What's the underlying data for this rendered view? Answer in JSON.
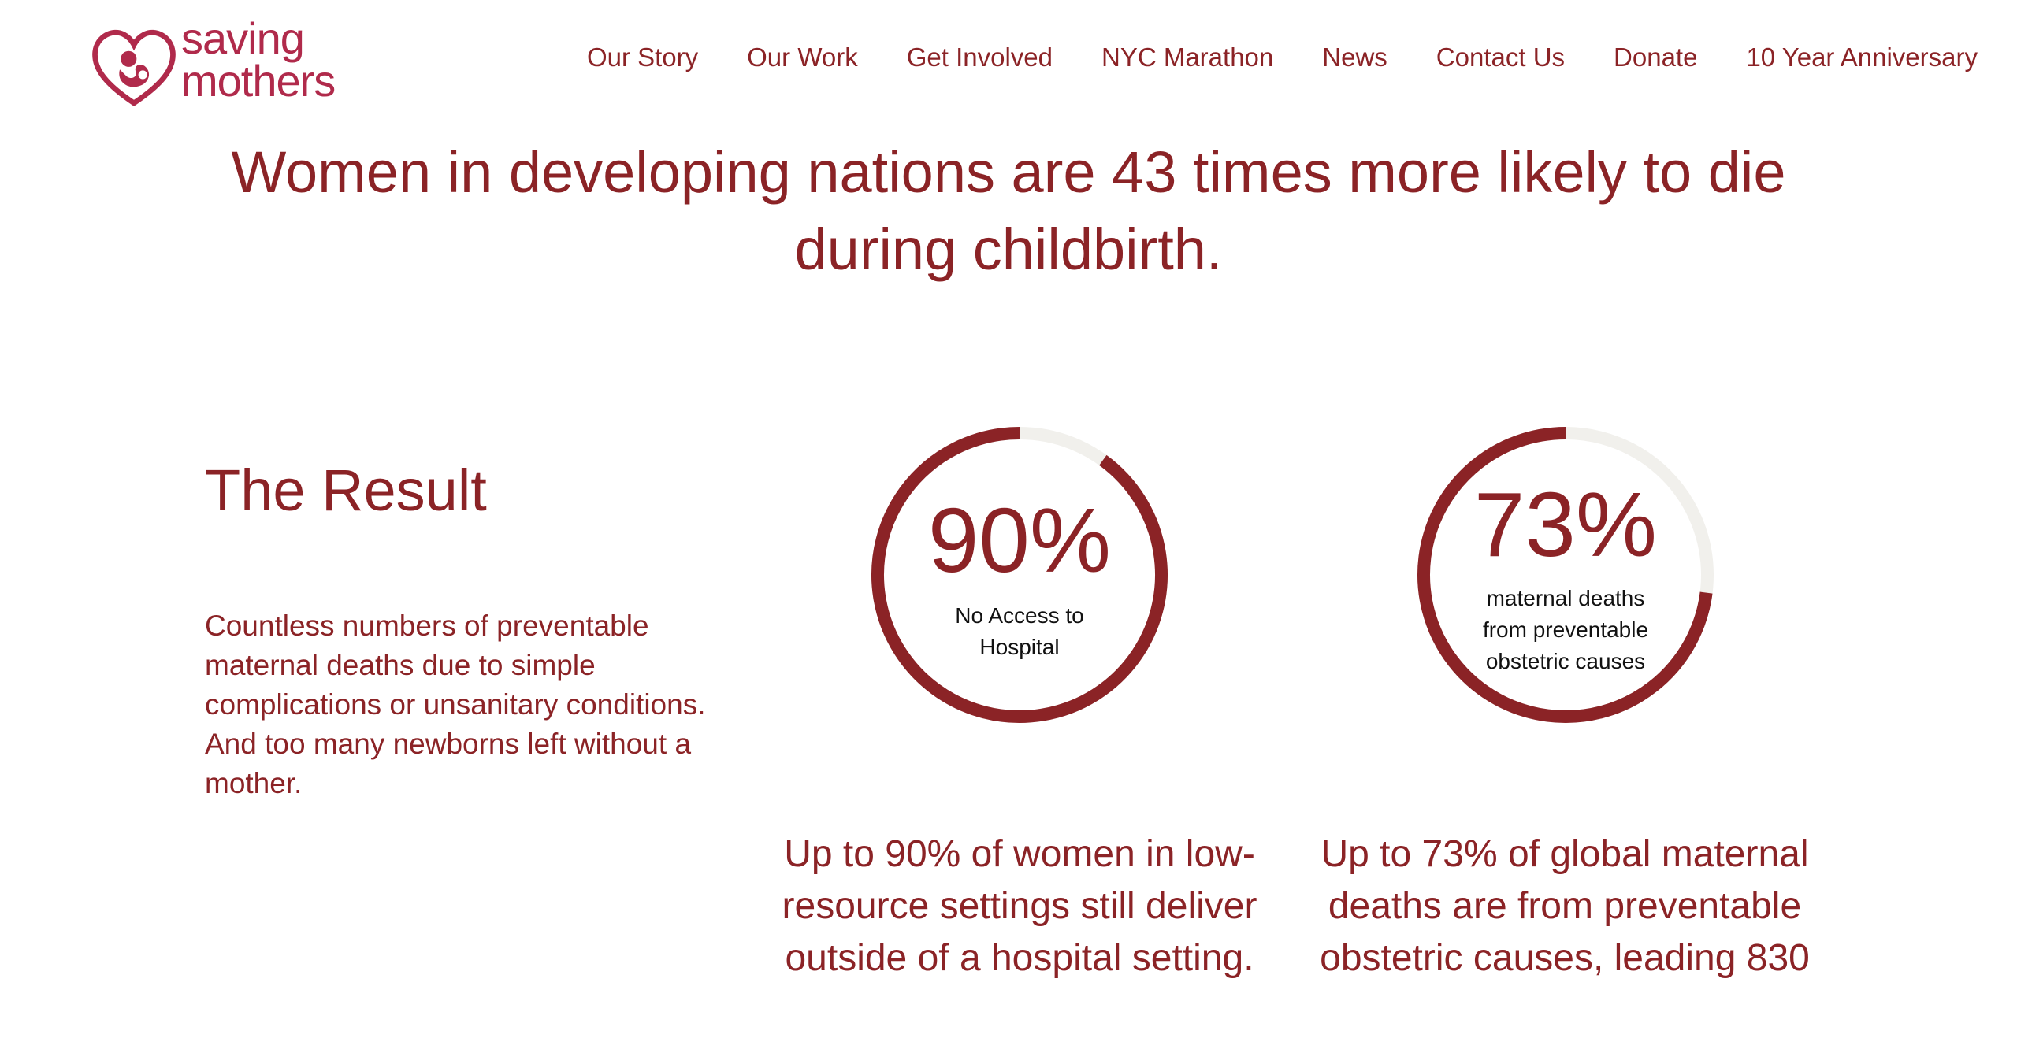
{
  "header": {
    "logo": {
      "line1": "saving",
      "line2": "mothers",
      "icon": "heart-mother-child-icon"
    },
    "nav": [
      "Our Story",
      "Our Work",
      "Get Involved",
      "NYC Marathon",
      "News",
      "Contact Us",
      "Donate",
      "10 Year Anniversary"
    ]
  },
  "headline": "Women in developing nations are 43 times more likely to die during childbirth.",
  "result": {
    "title": "The Result",
    "body": "Countless numbers of preventable maternal deaths due to simple complications or unsanitary conditions. And too many newborns left without a mother."
  },
  "stats": [
    {
      "value": "90%",
      "percent": 90,
      "label": "No Access to Hospital",
      "description": "Up to 90% of women in low-resource settings still deliver outside of a hospital setting."
    },
    {
      "value": "73%",
      "percent": 73,
      "label": "maternal deaths from preventable obstetric causes",
      "description": "Up to 73% of global maternal deaths are from preventable obstetric causes, leading 830"
    }
  ],
  "colors": {
    "accent": "#8b2326",
    "logo": "#b02a4b",
    "ring_track": "#f1f0ec",
    "label_text": "#111111"
  }
}
